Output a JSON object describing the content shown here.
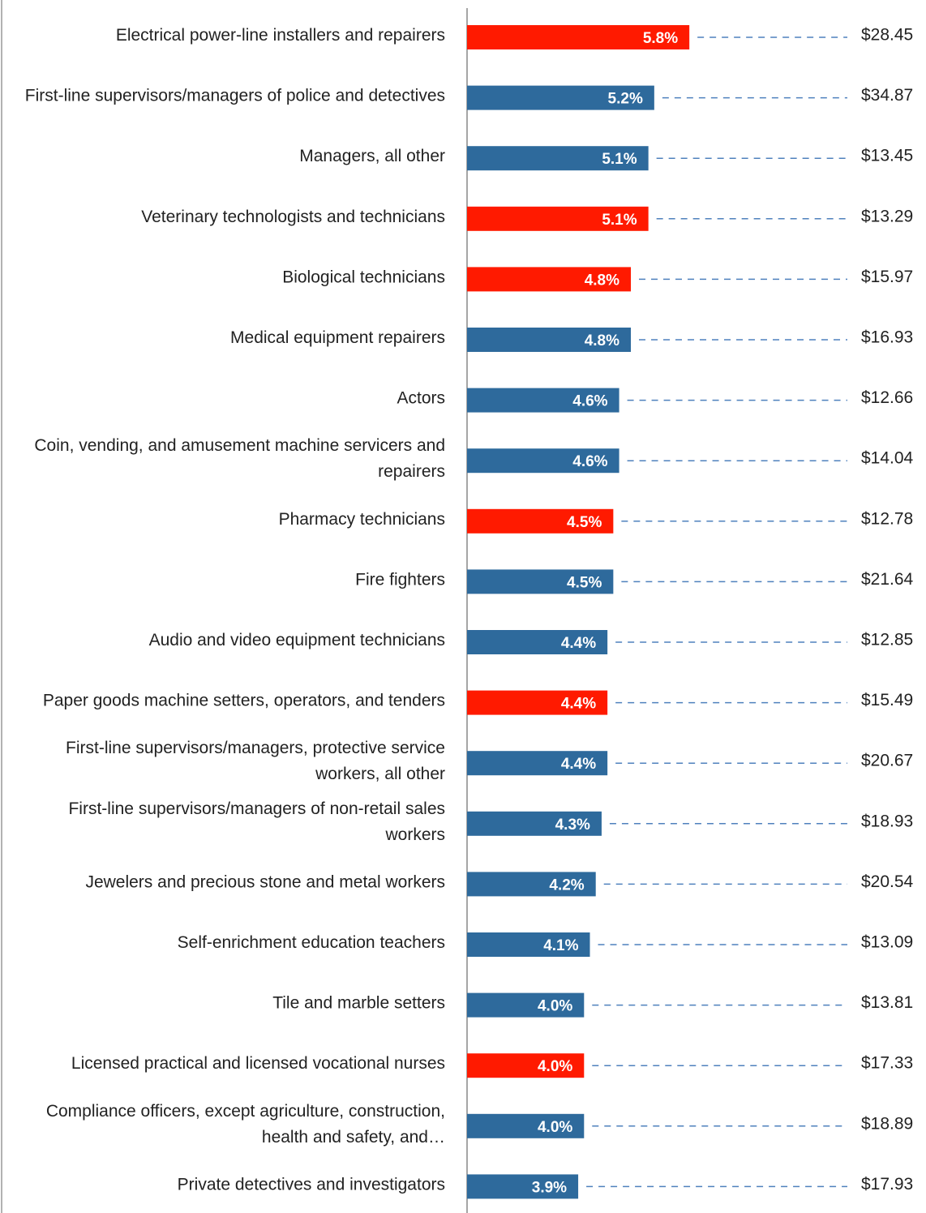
{
  "chart_data": {
    "type": "bar",
    "orientation": "horizontal",
    "categories": [
      "Electrical power-line installers and repairers",
      "First-line supervisors/managers of police and detectives",
      "Managers, all other",
      "Veterinary technologists and technicians",
      "Biological technicians",
      "Medical equipment repairers",
      "Actors",
      "Coin, vending, and amusement machine servicers and repairers",
      "Pharmacy technicians",
      "Fire fighters",
      "Audio and video equipment technicians",
      "Paper goods machine setters, operators, and tenders",
      "First-line supervisors/managers, protective service workers, all other",
      "First-line supervisors/managers of non-retail sales workers",
      "Jewelers and precious stone and metal workers",
      "Self-enrichment education teachers",
      "Tile and marble setters",
      "Licensed practical and licensed vocational nurses",
      "Compliance officers, except agriculture, construction, health and safety, and…",
      "Private detectives and investigators"
    ],
    "values": [
      5.8,
      5.2,
      5.1,
      5.1,
      4.8,
      4.8,
      4.6,
      4.6,
      4.5,
      4.5,
      4.4,
      4.4,
      4.4,
      4.3,
      4.2,
      4.1,
      4.0,
      4.0,
      4.0,
      3.9
    ],
    "value_labels": [
      "5.8%",
      "5.2%",
      "5.1%",
      "5.1%",
      "4.8%",
      "4.8%",
      "4.6%",
      "4.6%",
      "4.5%",
      "4.5%",
      "4.4%",
      "4.4%",
      "4.4%",
      "4.3%",
      "4.2%",
      "4.1%",
      "4.0%",
      "4.0%",
      "4.0%",
      "3.9%"
    ],
    "colors": [
      "#ff1a00",
      "#2e6a9c",
      "#2e6a9c",
      "#ff1a00",
      "#ff1a00",
      "#2e6a9c",
      "#2e6a9c",
      "#2e6a9c",
      "#ff1a00",
      "#2e6a9c",
      "#2e6a9c",
      "#ff1a00",
      "#2e6a9c",
      "#2e6a9c",
      "#2e6a9c",
      "#2e6a9c",
      "#2e6a9c",
      "#ff1a00",
      "#2e6a9c",
      "#2e6a9c"
    ],
    "xlim": [
      2,
      9
    ],
    "wages": {
      "values": [
        28.45,
        34.87,
        13.45,
        13.29,
        15.97,
        16.93,
        12.66,
        14.04,
        12.78,
        21.64,
        12.85,
        15.49,
        20.67,
        18.93,
        20.54,
        13.09,
        13.81,
        17.33,
        18.89,
        17.93
      ],
      "value_labels": [
        "$28.45",
        "$34.87",
        "$13.45",
        "$13.29",
        "$15.97",
        "$16.93",
        "$12.66",
        "$14.04",
        "$12.78",
        "$21.64",
        "$12.85",
        "$15.49",
        "$20.67",
        "$18.93",
        "$20.54",
        "$13.09",
        "$13.81",
        "$17.33",
        "$18.89",
        "$17.93"
      ]
    }
  }
}
